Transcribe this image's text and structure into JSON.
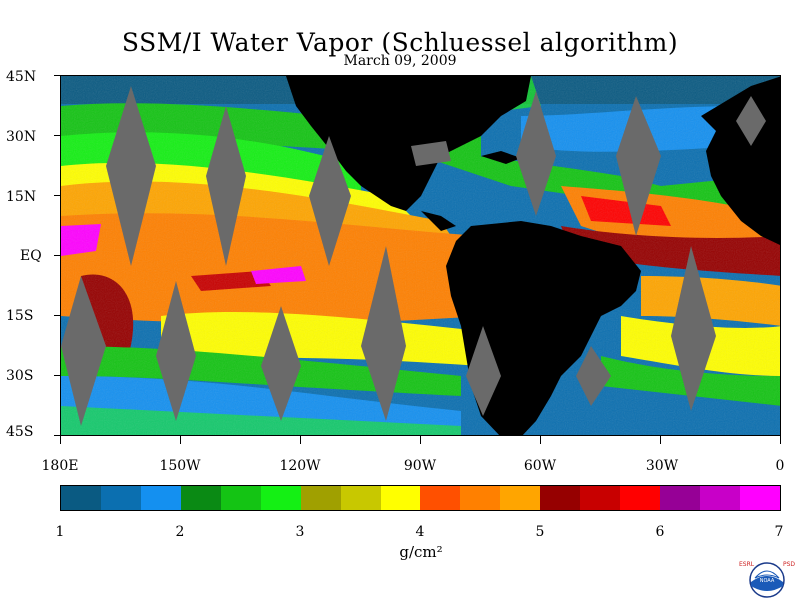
{
  "title": "SSM/I Water Vapor (Schluessel algorithm)",
  "subtitle": "March 09, 2009",
  "lat_labels": [
    "45N",
    "30N",
    "15N",
    "EQ",
    "15S",
    "30S",
    "45S"
  ],
  "lon_labels": [
    "180E",
    "150W",
    "120W",
    "90W",
    "60W",
    "30W",
    "0"
  ],
  "colorbar": {
    "labels": [
      "1",
      "2",
      "3",
      "4",
      "5",
      "6",
      "7"
    ],
    "unit": "g/cm²",
    "colors": [
      "#0a5a82",
      "#0b6fb0",
      "#1490f0",
      "#0a8a14",
      "#14c414",
      "#14f014",
      "#a0a000",
      "#c8c800",
      "#ffff00",
      "#ff5000",
      "#ff8000",
      "#ffa500",
      "#960000",
      "#c80000",
      "#ff0000",
      "#960096",
      "#c800c8",
      "#ff00ff"
    ]
  },
  "logo": {
    "left_text": "ESRL",
    "right_text": "PSD",
    "center_text": "NOAA"
  }
}
